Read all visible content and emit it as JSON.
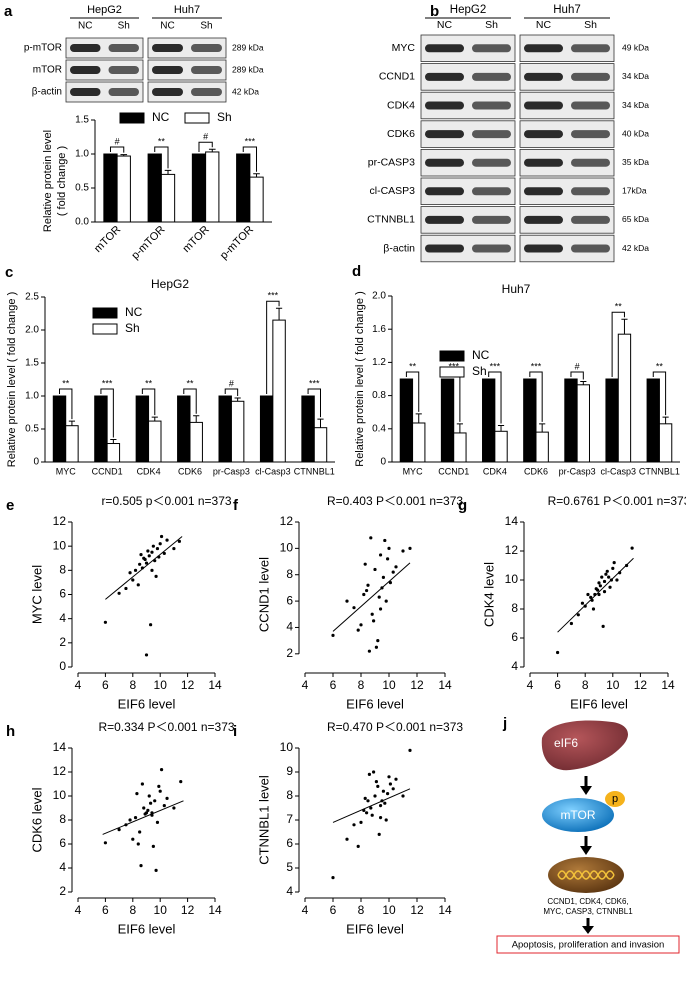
{
  "blots": [
    {
      "panel": "a",
      "cell_lines": [
        "HepG2",
        "Huh7"
      ],
      "lanes": [
        "NC",
        "Sh",
        "NC",
        "Sh"
      ],
      "rows": [
        {
          "name": "p-mTOR",
          "size": "289 kDa"
        },
        {
          "name": "mTOR",
          "size": "289 kDa"
        },
        {
          "name": "β-actin",
          "size": "42 kDa"
        }
      ]
    },
    {
      "panel": "b",
      "cell_lines": [
        "HepG2",
        "Huh7"
      ],
      "lanes": [
        "NC",
        "Sh",
        "NC",
        "Sh"
      ],
      "rows": [
        {
          "name": "MYC",
          "size": "49 kDa"
        },
        {
          "name": "CCND1",
          "size": "34 kDa"
        },
        {
          "name": "CDK4",
          "size": "34 kDa"
        },
        {
          "name": "CDK6",
          "size": "40 kDa"
        },
        {
          "name": "pr-CASP3",
          "size": "35 kDa"
        },
        {
          "name": "cl-CASP3",
          "size": "17kDa"
        },
        {
          "name": "CTNNBL1",
          "size": "65 kDa"
        },
        {
          "name": "β-actin",
          "size": "42 kDa"
        }
      ]
    }
  ],
  "chart_data": [
    {
      "type": "bar",
      "y_label": [
        "Relative protein level",
        "( fold change )"
      ],
      "categories": [
        "mTOR",
        "p-mTOR",
        "mTOR",
        "p-mTOR"
      ],
      "series": [
        {
          "name": "NC",
          "color": "#000000",
          "values": [
            1,
            1,
            1,
            1
          ]
        },
        {
          "name": "Sh",
          "color": "#ffffff",
          "values": [
            0.97,
            0.7,
            1.03,
            0.66
          ],
          "errors": [
            0.02,
            0.06,
            0.04,
            0.05
          ]
        }
      ],
      "significance": [
        "#",
        "**",
        "#",
        "***"
      ],
      "legend": "top",
      "ylim": [
        0,
        1.5
      ],
      "yticks": [
        {
          "value": 0,
          "label": "0.0"
        },
        0.5,
        {
          "value": 1,
          "label": "1.0"
        },
        1.5
      ]
    },
    {
      "type": "bar",
      "panel": "c",
      "title": "HepG2",
      "y_label": "Relative protein level ( fold change )",
      "categories": [
        "MYC",
        "CCND1",
        "CDK4",
        "CDK6",
        "pr-Casp3",
        "cl-Casp3",
        "CTNNBL1"
      ],
      "series": [
        {
          "name": "NC",
          "color": "#000000",
          "values": [
            1,
            1,
            1,
            1,
            1,
            1,
            1
          ]
        },
        {
          "name": "Sh",
          "color": "#ffffff",
          "values": [
            0.55,
            0.28,
            0.62,
            0.6,
            0.92,
            2.15,
            0.52
          ],
          "errors": [
            0.07,
            0.06,
            0.06,
            0.1,
            0.05,
            0.18,
            0.13
          ]
        }
      ],
      "significance": [
        "**",
        "***",
        "**",
        "**",
        "#",
        "***",
        "***"
      ],
      "legend": "upper left",
      "ylim": [
        0,
        2.5
      ],
      "yticks": [
        0,
        0.5,
        {
          "value": 1,
          "label": "1.0"
        },
        1.5,
        {
          "value": 2,
          "label": "2.0"
        },
        2.5
      ]
    },
    {
      "type": "bar",
      "panel": "d",
      "title": "Huh7",
      "y_label": "Relative protein level ( fold change )",
      "categories": [
        "MYC",
        "CCND1",
        "CDK4",
        "CDK6",
        "pr-Casp3",
        "cl-Casp3",
        "CTNNBL1"
      ],
      "series": [
        {
          "name": "NC",
          "color": "#000000",
          "values": [
            1,
            1,
            1,
            1,
            1,
            1,
            1
          ]
        },
        {
          "name": "Sh",
          "color": "#ffffff",
          "values": [
            0.47,
            0.35,
            0.37,
            0.36,
            0.93,
            1.54,
            0.46
          ],
          "errors": [
            0.11,
            0.11,
            0.07,
            0.1,
            0.04,
            0.18,
            0.08
          ]
        }
      ],
      "significance": [
        "**",
        "***",
        "***",
        "***",
        "#",
        "**",
        "**"
      ],
      "legend": "upper left",
      "ylim": [
        0,
        2.0
      ],
      "yticks": [
        0,
        0.4,
        0.8,
        1.2,
        1.6,
        {
          "value": 2,
          "label": "2.0"
        }
      ]
    },
    {
      "type": "scatter",
      "panel": "e",
      "title": "r=0.505 p＜0.001 n=373",
      "x_label": "EIF6 level",
      "y_label": "MYC level",
      "x": [
        8.2,
        8.5,
        8.8,
        9.0,
        9.2,
        9.4,
        9.6,
        9.8,
        10.0,
        10.3,
        8.0,
        8.7,
        9.1,
        9.5,
        9.9,
        10.5,
        11.0,
        7.5,
        7.8,
        8.4,
        8.9,
        9.3,
        9.7,
        10.1,
        6.0,
        7.0,
        9.0,
        8.6,
        9.4,
        11.4
      ],
      "y": [
        8.0,
        8.5,
        9.0,
        8.6,
        9.2,
        9.5,
        8.8,
        9.8,
        10.2,
        9.4,
        7.2,
        8.2,
        9.6,
        10.0,
        9.1,
        10.5,
        9.8,
        6.5,
        7.8,
        6.8,
        8.9,
        3.5,
        7.5,
        10.8,
        3.7,
        6.1,
        1.0,
        9.3,
        8.0,
        10.4
      ],
      "trendline": {
        "x": [
          6,
          11.6
        ],
        "y": [
          5.6,
          10.8
        ]
      },
      "xlim": [
        4,
        14
      ],
      "xticks": [
        4,
        6,
        8,
        10,
        12,
        14
      ],
      "ylim": [
        0,
        12
      ],
      "yticks": [
        0,
        2,
        4,
        6,
        8,
        10,
        12
      ]
    },
    {
      "type": "scatter",
      "panel": "f",
      "title": "R=0.403 P＜0.001 n=373",
      "x_label": "EIF6 level",
      "y_label": "CCND1 level",
      "x": [
        8.2,
        8.5,
        8.8,
        9.0,
        9.2,
        9.4,
        9.6,
        9.8,
        10.0,
        10.3,
        8.0,
        8.7,
        9.1,
        9.5,
        9.9,
        10.5,
        11.0,
        7.5,
        7.8,
        8.4,
        8.9,
        9.3,
        9.7,
        10.1,
        6.0,
        7.0,
        8.6,
        9.4,
        8.3,
        11.5
      ],
      "y": [
        6.5,
        7.2,
        5.0,
        8.4,
        3.0,
        9.5,
        7.8,
        6.0,
        10.0,
        8.2,
        4.2,
        10.8,
        2.5,
        7.0,
        9.2,
        8.6,
        9.8,
        5.5,
        3.8,
        6.8,
        4.5,
        6.3,
        10.6,
        7.4,
        3.4,
        6.0,
        2.2,
        5.4,
        8.8,
        10.0
      ],
      "trendline": {
        "x": [
          6,
          11.5
        ],
        "y": [
          3.7,
          8.9
        ]
      },
      "xlim": [
        4,
        14
      ],
      "xticks": [
        4,
        6,
        8,
        10,
        12,
        14
      ],
      "ylim": [
        1,
        12
      ],
      "yticks": [
        2,
        4,
        6,
        8,
        10,
        12
      ]
    },
    {
      "type": "scatter",
      "panel": "g",
      "title": "R=0.6761 P＜0.001 n=373",
      "x_label": "EIF6 level",
      "y_label": "CDK4 level",
      "x": [
        8.2,
        8.5,
        8.8,
        9.0,
        9.2,
        9.4,
        9.6,
        9.8,
        10.0,
        10.3,
        8.0,
        8.7,
        9.1,
        9.5,
        9.9,
        10.5,
        11.0,
        7.5,
        7.8,
        8.4,
        8.9,
        9.3,
        9.7,
        10.1,
        6.0,
        7.0,
        9.0,
        8.6,
        9.4,
        11.4
      ],
      "y": [
        9.0,
        8.6,
        9.4,
        9.8,
        10.2,
        9.2,
        10.6,
        9.5,
        10.8,
        10.0,
        8.2,
        9.0,
        9.6,
        10.4,
        10.0,
        10.5,
        11.0,
        7.6,
        8.4,
        8.8,
        9.3,
        6.8,
        10.2,
        11.2,
        5.0,
        7.0,
        9.0,
        8.0,
        9.9,
        12.2
      ],
      "trendline": {
        "x": [
          6,
          11.5
        ],
        "y": [
          6.4,
          11.5
        ]
      },
      "xlim": [
        4,
        14
      ],
      "xticks": [
        4,
        6,
        8,
        10,
        12,
        14
      ],
      "ylim": [
        4,
        14
      ],
      "yticks": [
        4,
        6,
        8,
        10,
        12,
        14
      ]
    },
    {
      "type": "scatter",
      "panel": "h",
      "title": "R=0.334 P＜0.001 n=373",
      "x_label": "EIF6 level",
      "y_label": "CDK6 level",
      "x": [
        8.2,
        8.5,
        8.8,
        9.0,
        9.2,
        9.4,
        9.6,
        9.8,
        10.0,
        10.3,
        8.0,
        8.7,
        9.1,
        9.5,
        9.9,
        10.5,
        11.0,
        7.5,
        7.8,
        8.4,
        8.9,
        9.3,
        9.7,
        10.1,
        6.0,
        7.0,
        8.6,
        9.4,
        8.3,
        11.5
      ],
      "y": [
        8.2,
        7.0,
        9.0,
        8.6,
        10.0,
        8.4,
        9.6,
        7.8,
        10.4,
        9.2,
        6.4,
        11.0,
        8.8,
        5.8,
        10.8,
        9.8,
        9.0,
        7.6,
        8.0,
        6.0,
        8.5,
        9.4,
        3.8,
        12.2,
        6.1,
        7.2,
        4.2,
        8.6,
        10.2,
        11.2
      ],
      "trendline": {
        "x": [
          5.8,
          11.7
        ],
        "y": [
          6.8,
          9.6
        ]
      },
      "xlim": [
        4,
        14
      ],
      "xticks": [
        4,
        6,
        8,
        10,
        12,
        14
      ],
      "ylim": [
        2,
        14
      ],
      "yticks": [
        2,
        4,
        6,
        8,
        10,
        12,
        14
      ]
    },
    {
      "type": "scatter",
      "panel": "i",
      "title": "R=0.470 P＜0.001 n=373",
      "x_label": "EIF6 level",
      "y_label": "CTNNBL1 level",
      "x": [
        8.2,
        8.5,
        8.8,
        9.0,
        9.2,
        9.4,
        9.6,
        9.8,
        10.0,
        10.3,
        8.0,
        8.7,
        9.1,
        9.5,
        9.9,
        10.5,
        11.0,
        7.5,
        7.8,
        8.4,
        8.9,
        9.3,
        9.7,
        10.1,
        6.0,
        7.0,
        8.6,
        9.4,
        8.3,
        11.5
      ],
      "y": [
        7.4,
        7.8,
        7.2,
        8.0,
        8.4,
        7.6,
        8.2,
        7.0,
        8.8,
        8.3,
        6.9,
        7.5,
        8.6,
        7.8,
        8.1,
        8.7,
        8.0,
        6.8,
        5.9,
        7.3,
        9.0,
        6.4,
        7.7,
        8.5,
        4.6,
        6.2,
        8.9,
        7.1,
        7.9,
        9.9
      ],
      "trendline": {
        "x": [
          6,
          11.5
        ],
        "y": [
          6.9,
          8.3
        ]
      },
      "xlim": [
        4,
        14
      ],
      "xticks": [
        4,
        6,
        8,
        10,
        12,
        14
      ],
      "ylim": [
        4,
        10
      ],
      "yticks": [
        4,
        5,
        6,
        7,
        8,
        9,
        10
      ]
    }
  ],
  "diagram": {
    "panel": "j",
    "nodes": {
      "liver": "eIF6",
      "kinase": "mTOR",
      "phospho": "p"
    },
    "genes": [
      "CCND1, CDK4, CDK6,",
      "MYC, CASP3, CTNNBL1"
    ],
    "outcome": "Apoptosis, proliferation and invasion"
  }
}
